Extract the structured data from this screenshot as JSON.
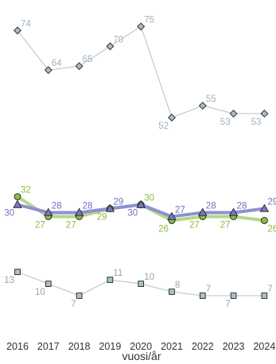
{
  "chart_data": {
    "type": "line",
    "title": "",
    "xlabel": "vuosi/år",
    "ylabel": "",
    "x": [
      "2016",
      "2017",
      "2018",
      "2019",
      "2020",
      "2021",
      "2022",
      "2023",
      "2024"
    ],
    "grid": false,
    "legend": "none",
    "series": [
      {
        "values": [
          74,
          64,
          65,
          70,
          75,
          52,
          55,
          53,
          53
        ],
        "marker": "diamond",
        "color": "#a7bccc",
        "line_color": "#c4c9cc",
        "label_color": "#9fb2c0"
      },
      {
        "values": [
          30,
          28,
          28,
          29,
          30,
          27,
          28,
          28,
          29
        ],
        "marker": "triangle",
        "color": "#7878c4",
        "line_color": "#8f8fd0",
        "label_color": "#6f6fc0"
      },
      {
        "values": [
          32,
          27,
          27,
          29,
          30,
          26,
          27,
          27,
          26
        ],
        "marker": "circle",
        "color": "#8bbd3c",
        "line_color": "#b5d68a",
        "label_color": "#8bbd3c"
      },
      {
        "values": [
          13,
          10,
          7,
          11,
          10,
          8,
          7,
          7,
          7
        ],
        "marker": "square",
        "color": "#a9c0ce",
        "line_color": "#c4c9cc",
        "label_color": "#a2a2a2"
      }
    ]
  }
}
